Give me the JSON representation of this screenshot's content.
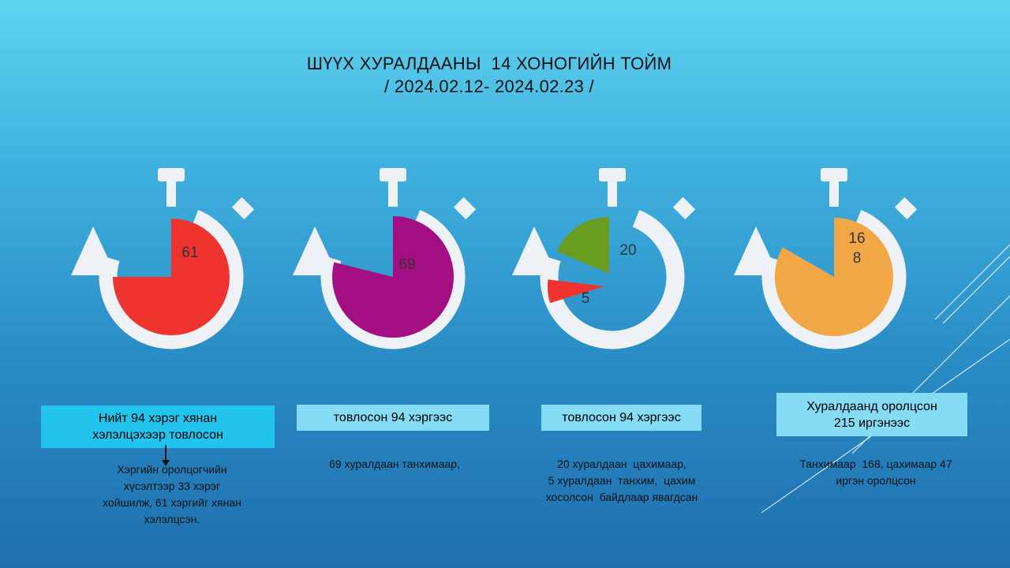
{
  "title": {
    "line1": "ШҮҮХ ХУРАЛДААНЫ  14 ХОНОГИЙН ТОЙМ",
    "line2": "/ 2024.02.12- 2024.02.23 /"
  },
  "colors": {
    "ring": "#eef1f5",
    "red": "#ef3430",
    "purple": "#a30f82",
    "green": "#689d21",
    "orange": "#f2a747"
  },
  "chart_data": [
    {
      "type": "pie",
      "slices": [
        {
          "value": 61,
          "label": "61",
          "color": "#ef3430",
          "angle_deg": 270
        }
      ]
    },
    {
      "type": "pie",
      "slices": [
        {
          "value": 69,
          "label": "69",
          "color": "#a30f82",
          "angle_deg": 284
        }
      ]
    },
    {
      "type": "pie",
      "slices": [
        {
          "value": 20,
          "label": "20",
          "color": "#689d21"
        },
        {
          "value": 5,
          "label": "5",
          "color": "#ef3430"
        }
      ]
    },
    {
      "type": "pie",
      "slices": [
        {
          "value": 168,
          "label_lines": [
            "16",
            "8"
          ],
          "color": "#f2a747",
          "angle_deg": 300
        }
      ]
    }
  ],
  "boxes": [
    {
      "lines": [
        "Нийт 94 хэрэг хянан",
        "хэлэлцэхээр товлосон"
      ]
    },
    {
      "lines": [
        "товлосон 94 хэргээс"
      ]
    },
    {
      "lines": [
        "товлосон 94 хэргээс"
      ]
    },
    {
      "lines": [
        "Хуралдаанд оролцсон",
        "215 иргэнээс"
      ]
    }
  ],
  "notes": [
    {
      "lines": [
        "Хэргийн оролцогчийн",
        "хүсэлтээр 33 хэрэг",
        "хойшилж, 61 хэргийг хянан",
        "хэлэлцсэн."
      ]
    },
    {
      "lines": [
        "69 хуралдаан танхимаар,"
      ]
    },
    {
      "lines": [
        "20 хуралдаан  цахимаар,",
        "5 хуралдаан  танхим,  цахим",
        "хосолсон  байдлаар явагдсан"
      ]
    },
    {
      "lines": [
        "Танхимаар  168, цахимаар 47",
        "иргэн оролцсон"
      ]
    }
  ]
}
